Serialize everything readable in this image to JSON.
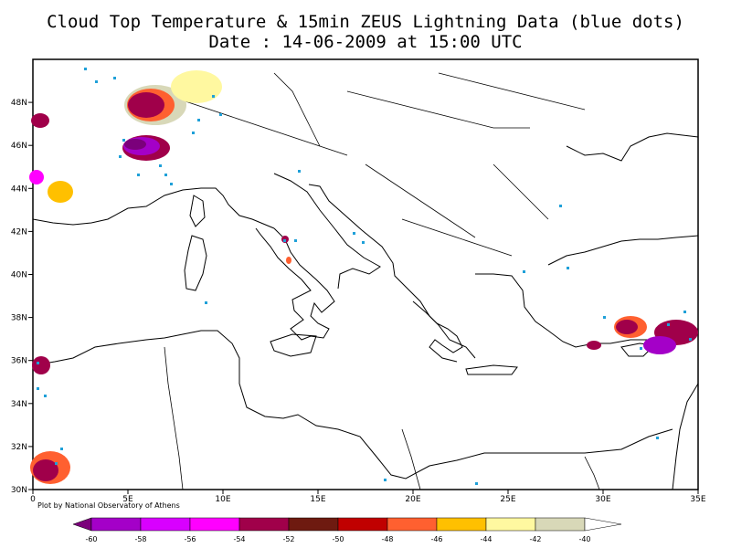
{
  "title": {
    "line1": "Cloud Top Temperature & 15min ZEUS Lightning Data (blue dots)",
    "line2": "Date : 14-06-2009 at 15:00 UTC"
  },
  "credit": "Plot by National Observatory of Athens",
  "lon_ticks": [
    "0",
    "5E",
    "10E",
    "15E",
    "20E",
    "25E",
    "30E",
    "35E"
  ],
  "lat_ticks": [
    "30N",
    "32N",
    "34N",
    "36N",
    "38N",
    "40N",
    "42N",
    "44N",
    "46N",
    "48N"
  ],
  "colorbar": {
    "labels": [
      "-60",
      "-58",
      "-56",
      "-54",
      "-52",
      "-50",
      "-48",
      "-46",
      "-44",
      "-42",
      "-40"
    ],
    "colors": [
      "#7b007b",
      "#a400c8",
      "#d800ff",
      "#ff00ff",
      "#a0004a",
      "#6e1a10",
      "#c00000",
      "#ff6030",
      "#ffc000",
      "#fff8a0",
      "#d8d8b8",
      "#ffffff"
    ]
  },
  "lightning_color": "#1fa0d8"
}
